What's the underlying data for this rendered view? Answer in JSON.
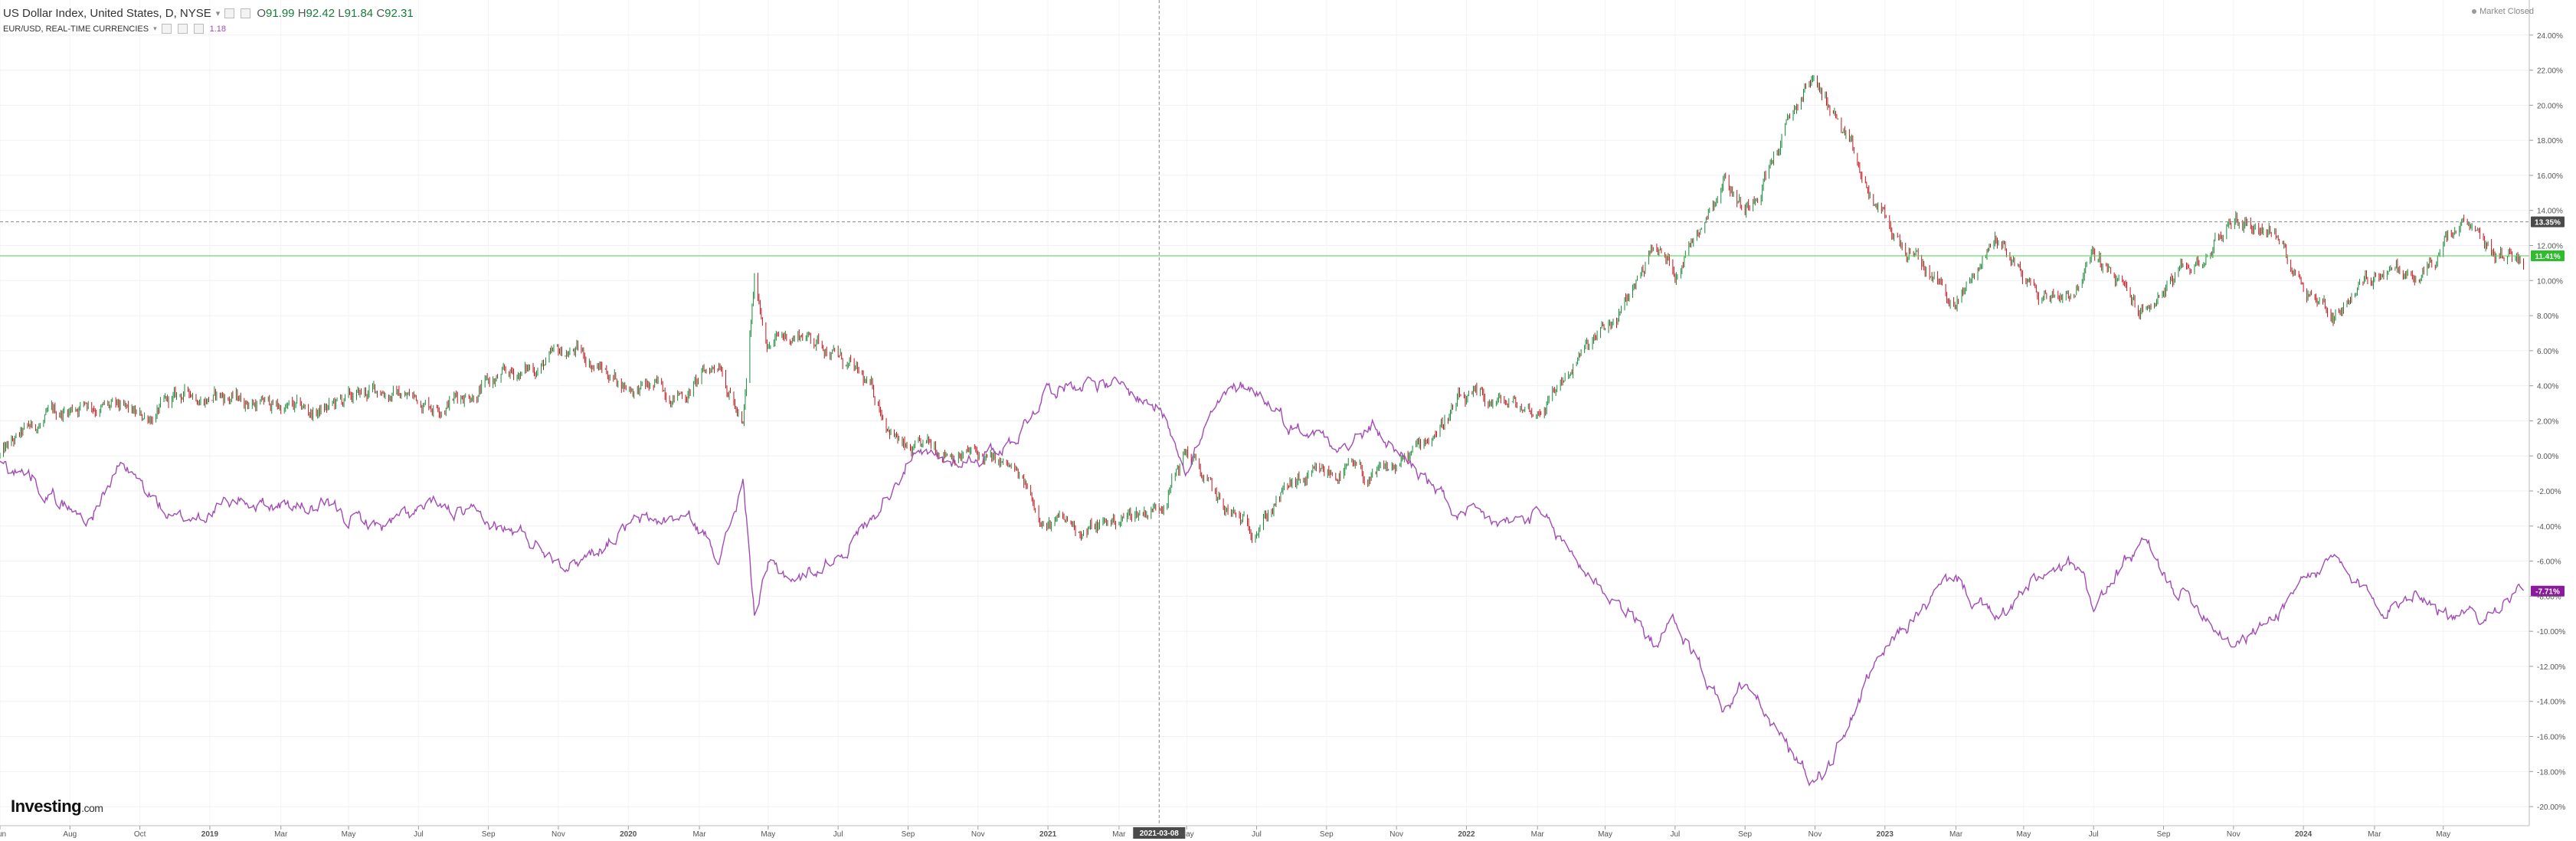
{
  "legend": {
    "main_title": "US Dollar Index, United States, D, NYSE",
    "ohlc": {
      "o_label": "O",
      "o": "91.99",
      "h_label": "H",
      "h": "92.42",
      "l_label": "L",
      "l": "91.84",
      "c_label": "C",
      "c": "92.31"
    },
    "compare_title": "EUR/USD, REAL-TIME CURRENCIES",
    "compare_value": "1.18"
  },
  "status": "Market Closed",
  "logo": {
    "brand": "Investing",
    "suffix": ".com"
  },
  "crosshair": {
    "date_label": "2021-03-08",
    "price_label": "13.35%"
  },
  "badges": {
    "dxy": "11.41%",
    "eurusd": "-7.71%"
  },
  "colors": {
    "up": "#1a8a3a",
    "down": "#c0151e",
    "compare": "#a24bb5",
    "green_line": "#46d646",
    "badge_green": "#2dbd2d",
    "badge_purple": "#8c1a9c",
    "crosshair_badge": "#4a4a4a"
  },
  "chart_data": {
    "type": "line",
    "title": "US Dollar Index, United States, D, NYSE",
    "y_unit": "% change",
    "ylim": [
      -21,
      26
    ],
    "yticks": [
      "24.00%",
      "22.00%",
      "20.00%",
      "18.00%",
      "16.00%",
      "14.00%",
      "12.00%",
      "10.00%",
      "8.00%",
      "6.00%",
      "4.00%",
      "2.00%",
      "0.00%",
      "-2.00%",
      "-4.00%",
      "-6.00%",
      "-8.00%",
      "-10.00%",
      "-12.00%",
      "-14.00%",
      "-16.00%",
      "-18.00%",
      "-20.00%"
    ],
    "xticks": [
      "Jun",
      "Aug",
      "Oct",
      "2019",
      "Mar",
      "May",
      "Jul",
      "Sep",
      "Nov",
      "2020",
      "Mar",
      "May",
      "Jul",
      "Sep",
      "Nov",
      "2021",
      "Mar",
      "May",
      "Jul",
      "Sep",
      "Nov",
      "2022",
      "Mar",
      "May",
      "Jul",
      "Sep",
      "Nov",
      "2023",
      "Mar",
      "May",
      "Jul",
      "Sep",
      "Nov",
      "2024",
      "Mar",
      "May"
    ],
    "x_start": "2018-06-01",
    "x_end": "2024-06-15",
    "grid": true,
    "series": [
      {
        "name": "US Dollar Index",
        "style": "candles",
        "points": [
          [
            "2018-06-01",
            0
          ],
          [
            "2018-07-01",
            1.6
          ],
          [
            "2018-08-15",
            3.2
          ],
          [
            "2018-10-01",
            2.0
          ],
          [
            "2018-11-15",
            3.6
          ],
          [
            "2019-01-01",
            3.2
          ],
          [
            "2019-03-01",
            2.4
          ],
          [
            "2019-05-01",
            3.8
          ],
          [
            "2019-06-15",
            3.0
          ],
          [
            "2019-09-01",
            4.8
          ],
          [
            "2019-10-15",
            6.0
          ],
          [
            "2019-12-01",
            4.0
          ],
          [
            "2020-01-20",
            3.6
          ],
          [
            "2020-02-20",
            5.5
          ],
          [
            "2020-03-10",
            1.5
          ],
          [
            "2020-03-20",
            9.8
          ],
          [
            "2020-04-01",
            6.5
          ],
          [
            "2020-05-01",
            7.0
          ],
          [
            "2020-05-25",
            6.2
          ],
          [
            "2020-07-01",
            3.5
          ],
          [
            "2020-08-01",
            0.0
          ],
          [
            "2020-09-01",
            0.5
          ],
          [
            "2020-10-01",
            0.0
          ],
          [
            "2020-11-01",
            -1.0
          ],
          [
            "2020-12-01",
            -3.8
          ],
          [
            "2021-01-06",
            -4.2
          ],
          [
            "2021-03-08",
            -2.8
          ],
          [
            "2021-04-01",
            0.3
          ],
          [
            "2021-05-01",
            -3.0
          ],
          [
            "2021-05-25",
            -4.2
          ],
          [
            "2021-07-01",
            -1.8
          ],
          [
            "2021-08-20",
            -0.8
          ],
          [
            "2021-09-10",
            -1.5
          ],
          [
            "2021-10-15",
            0.0
          ],
          [
            "2021-11-24",
            3.0
          ],
          [
            "2022-01-01",
            3.0
          ],
          [
            "2022-02-01",
            2.5
          ],
          [
            "2022-03-08",
            5.5
          ],
          [
            "2022-04-15",
            8.0
          ],
          [
            "2022-05-12",
            12.0
          ],
          [
            "2022-06-01",
            10.5
          ],
          [
            "2022-07-14",
            16.0
          ],
          [
            "2022-08-01",
            14.0
          ],
          [
            "2022-08-25",
            17.0
          ],
          [
            "2022-09-27",
            21.5
          ],
          [
            "2022-10-15",
            20.0
          ],
          [
            "2022-11-15",
            15.0
          ],
          [
            "2022-12-15",
            12.0
          ],
          [
            "2023-01-15",
            10.0
          ],
          [
            "2023-02-01",
            8.5
          ],
          [
            "2023-03-08",
            12.5
          ],
          [
            "2023-04-15",
            9.0
          ],
          [
            "2023-05-15",
            9.5
          ],
          [
            "2023-06-01",
            11.5
          ],
          [
            "2023-07-15",
            8.0
          ],
          [
            "2023-08-01",
            9.5
          ],
          [
            "2023-09-01",
            11.0
          ],
          [
            "2023-10-01",
            13.5
          ],
          [
            "2023-11-01",
            13.0
          ],
          [
            "2023-12-01",
            10.0
          ],
          [
            "2023-12-27",
            8.0
          ],
          [
            "2024-01-15",
            9.5
          ],
          [
            "2024-02-15",
            11.0
          ],
          [
            "2024-03-08",
            9.8
          ],
          [
            "2024-04-16",
            13.0
          ],
          [
            "2024-05-15",
            11.5
          ],
          [
            "2024-06-10",
            11.4
          ]
        ]
      },
      {
        "name": "EUR/USD",
        "style": "line",
        "points": [
          [
            "2018-06-01",
            -0.5
          ],
          [
            "2018-07-01",
            -1.2
          ],
          [
            "2018-08-15",
            -3.8
          ],
          [
            "2018-09-15",
            -0.5
          ],
          [
            "2018-11-01",
            -3.8
          ],
          [
            "2019-01-01",
            -2.5
          ],
          [
            "2019-03-01",
            -3.0
          ],
          [
            "2019-05-01",
            -4.0
          ],
          [
            "2019-06-15",
            -3.0
          ],
          [
            "2019-09-01",
            -4.6
          ],
          [
            "2019-10-15",
            -6.0
          ],
          [
            "2019-12-01",
            -4.0
          ],
          [
            "2020-01-20",
            -3.5
          ],
          [
            "2020-02-20",
            -5.5
          ],
          [
            "2020-03-10",
            -1.5
          ],
          [
            "2020-03-20",
            -9.0
          ],
          [
            "2020-04-01",
            -6.5
          ],
          [
            "2020-05-01",
            -7.0
          ],
          [
            "2020-05-25",
            -6.0
          ],
          [
            "2020-07-01",
            -3.5
          ],
          [
            "2020-08-01",
            0.0
          ],
          [
            "2020-09-01",
            -0.5
          ],
          [
            "2020-10-01",
            0.0
          ],
          [
            "2020-11-01",
            1.0
          ],
          [
            "2020-12-01",
            4.0
          ],
          [
            "2021-01-06",
            4.5
          ],
          [
            "2021-03-08",
            2.8
          ],
          [
            "2021-04-01",
            -0.3
          ],
          [
            "2021-05-01",
            3.0
          ],
          [
            "2021-05-25",
            4.2
          ],
          [
            "2021-07-01",
            1.8
          ],
          [
            "2021-08-20",
            0.8
          ],
          [
            "2021-09-10",
            1.5
          ],
          [
            "2021-10-15",
            -0.5
          ],
          [
            "2021-11-24",
            -3.5
          ],
          [
            "2022-01-01",
            -4.0
          ],
          [
            "2022-02-01",
            -3.5
          ],
          [
            "2022-03-08",
            -6.0
          ],
          [
            "2022-04-15",
            -8.5
          ],
          [
            "2022-05-12",
            -10.5
          ],
          [
            "2022-06-01",
            -9.5
          ],
          [
            "2022-07-14",
            -14.5
          ],
          [
            "2022-08-01",
            -13.0
          ],
          [
            "2022-08-25",
            -15.5
          ],
          [
            "2022-09-27",
            -18.5
          ],
          [
            "2022-10-15",
            -17.5
          ],
          [
            "2022-11-15",
            -13.0
          ],
          [
            "2022-12-15",
            -10.0
          ],
          [
            "2023-01-15",
            -8.0
          ],
          [
            "2023-02-01",
            -7.0
          ],
          [
            "2023-03-08",
            -9.5
          ],
          [
            "2023-04-15",
            -7.0
          ],
          [
            "2023-05-15",
            -6.5
          ],
          [
            "2023-06-01",
            -8.5
          ],
          [
            "2023-07-15",
            -5.0
          ],
          [
            "2023-08-01",
            -7.0
          ],
          [
            "2023-09-01",
            -8.5
          ],
          [
            "2023-10-01",
            -10.5
          ],
          [
            "2023-11-01",
            -9.5
          ],
          [
            "2023-12-01",
            -7.0
          ],
          [
            "2023-12-27",
            -6.0
          ],
          [
            "2024-01-15",
            -7.5
          ],
          [
            "2024-02-15",
            -8.5
          ],
          [
            "2024-03-08",
            -7.5
          ],
          [
            "2024-04-16",
            -9.5
          ],
          [
            "2024-05-15",
            -8.5
          ],
          [
            "2024-06-10",
            -7.7
          ]
        ]
      }
    ],
    "crosshair_date": "2021-03-08",
    "crosshair_value": 13.35,
    "current_dxy": 11.41,
    "current_eurusd": -7.71,
    "legend_position": "top-left"
  }
}
